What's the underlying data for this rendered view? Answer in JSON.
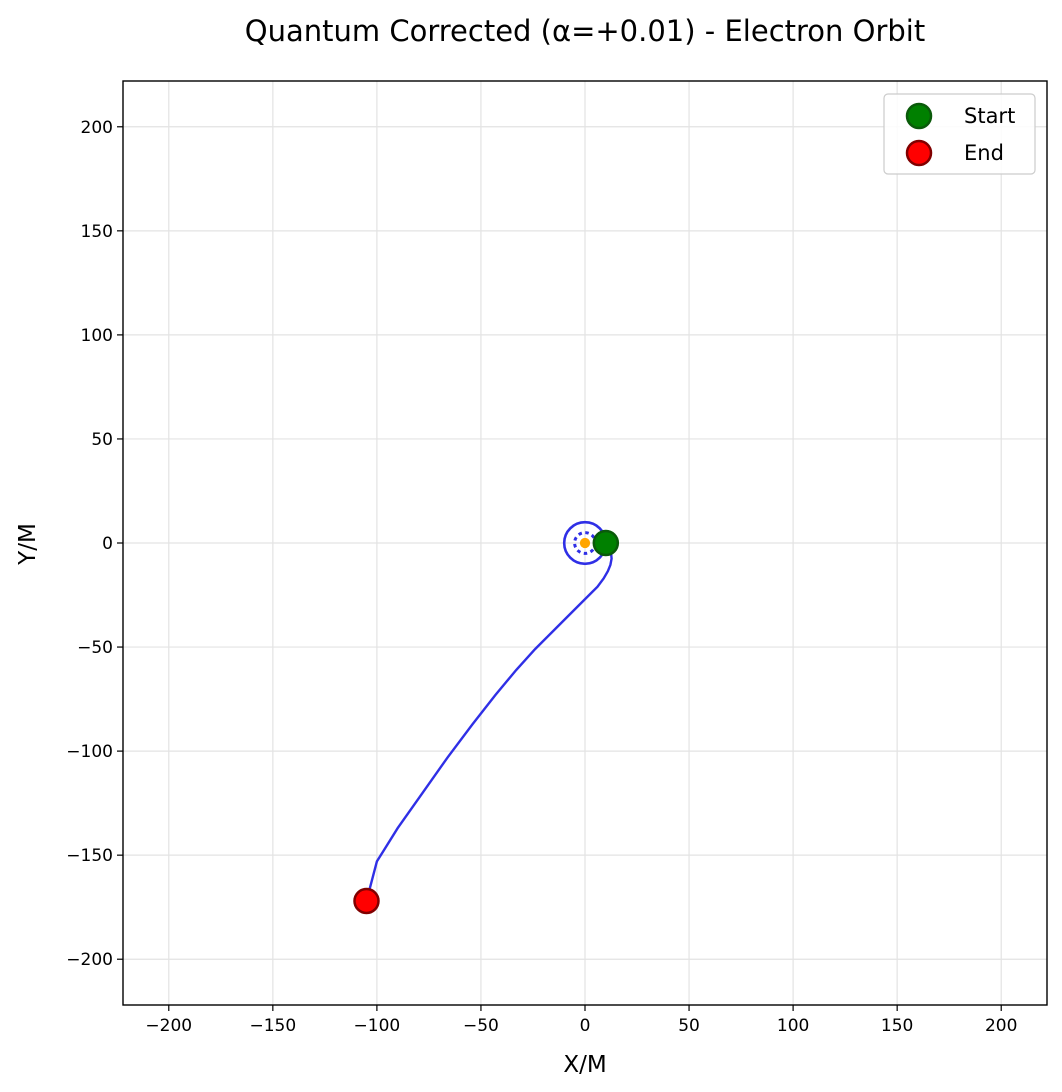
{
  "chart_data": {
    "type": "scatter",
    "title": "Quantum Corrected (α=+0.01) - Electron Orbit",
    "xlabel": "X/M",
    "ylabel": "Y/M",
    "xlim": [
      -222,
      222
    ],
    "ylim": [
      -222,
      222
    ],
    "x_ticks": [
      -200,
      -150,
      -100,
      -50,
      0,
      50,
      100,
      150,
      200
    ],
    "y_ticks": [
      -200,
      -150,
      -100,
      -50,
      0,
      50,
      100,
      150,
      200
    ],
    "x_tick_labels": [
      "−200",
      "−150",
      "−100",
      "−50",
      "0",
      "50",
      "100",
      "150",
      "200"
    ],
    "y_tick_labels": [
      "−200",
      "−150",
      "−100",
      "−50",
      "0",
      "50",
      "100",
      "150",
      "200"
    ],
    "grid": true,
    "legend_position": "top-right",
    "orbit": {
      "color": "#2f2fe6",
      "x": [
        10,
        11.5,
        12.5,
        12.8,
        12.2,
        11,
        9,
        6,
        2,
        -3,
        -9,
        -16,
        -24,
        -33,
        -43,
        -54,
        -66,
        -78,
        -90,
        -100,
        -105
      ],
      "y": [
        0,
        -2,
        -4.5,
        -7.5,
        -10.5,
        -13.5,
        -17,
        -21,
        -25,
        -30,
        -36,
        -43,
        -51,
        -61,
        -73,
        -87,
        -103,
        -120,
        -137,
        -153,
        -172
      ]
    },
    "central_objects": {
      "outer_circle_radius": 10,
      "dotted_circle_radius": 5,
      "core_radius": 1.5,
      "circle_color": "#2f2fe6",
      "core_color": "#ffa500"
    },
    "series": [
      {
        "name": "Start",
        "x": 10,
        "y": 0,
        "color": "#008000",
        "edge": "#0a5a0a"
      },
      {
        "name": "End",
        "x": -105,
        "y": -172,
        "color": "#ff0000",
        "edge": "#800000"
      }
    ]
  }
}
